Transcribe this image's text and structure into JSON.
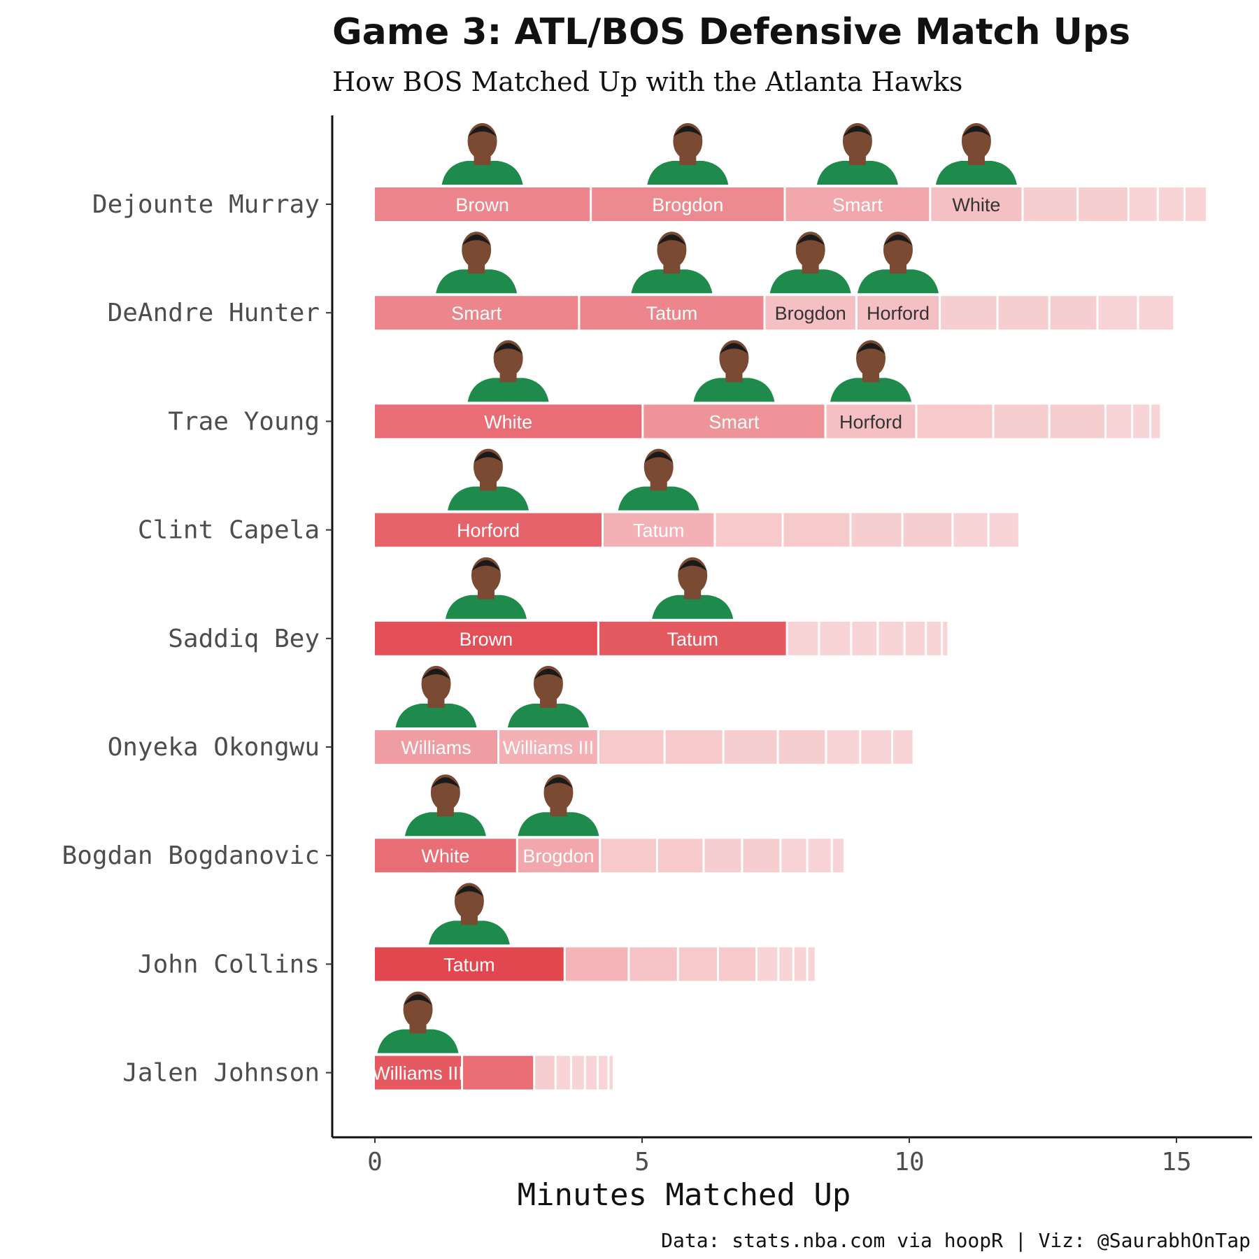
{
  "chart_data": {
    "type": "bar",
    "title": "Game 3: ATL/BOS Defensive Match Ups",
    "subtitle": "How BOS Matched Up with the Atlanta Hawks",
    "xlabel": "Minutes Matched Up",
    "ylabel": "",
    "xlim": [
      0,
      16.6
    ],
    "x_ticks": [
      "0",
      "5",
      "10",
      "15"
    ],
    "caption": "Data: stats.nba.com via hoopR | Viz: @SaurabhOnTap",
    "colors": {
      "bar": "#e03c45",
      "head_skin": "#7a4a32",
      "hair": "#1a1a1a",
      "jersey": "#1e8a4c"
    },
    "categories": [
      "Dejounte Murray",
      "DeAndre Hunter",
      "Trae Young",
      "Clint Capela",
      "Saddiq Bey",
      "Onyeka Okongwu",
      "Bogdan Bogdanovic",
      "John Collins",
      "Jalen Johnson"
    ],
    "rows": [
      {
        "player": "Dejounte Murray",
        "segments": [
          {
            "defender": "Brown",
            "minutes": 4.06,
            "alpha": 0.62
          },
          {
            "defender": "Brogdon",
            "minutes": 3.63,
            "alpha": 0.6
          },
          {
            "defender": "Smart",
            "minutes": 2.72,
            "alpha": 0.45
          },
          {
            "defender": "White",
            "minutes": 1.73,
            "alpha": 0.32
          },
          {
            "defender": "",
            "minutes": 1.03,
            "alpha": 0.25
          },
          {
            "defender": "",
            "minutes": 0.95,
            "alpha": 0.25
          },
          {
            "defender": "",
            "minutes": 0.55,
            "alpha": 0.22
          },
          {
            "defender": "",
            "minutes": 0.5,
            "alpha": 0.22
          },
          {
            "defender": "",
            "minutes": 0.42,
            "alpha": 0.22
          }
        ]
      },
      {
        "player": "DeAndre Hunter",
        "segments": [
          {
            "defender": "Smart",
            "minutes": 3.84,
            "alpha": 0.62
          },
          {
            "defender": "Tatum",
            "minutes": 3.47,
            "alpha": 0.62
          },
          {
            "defender": "Brogdon",
            "minutes": 1.72,
            "alpha": 0.32
          },
          {
            "defender": "Horford",
            "minutes": 1.56,
            "alpha": 0.32
          },
          {
            "defender": "",
            "minutes": 1.08,
            "alpha": 0.25
          },
          {
            "defender": "",
            "minutes": 0.97,
            "alpha": 0.25
          },
          {
            "defender": "",
            "minutes": 0.9,
            "alpha": 0.25
          },
          {
            "defender": "",
            "minutes": 0.76,
            "alpha": 0.22
          },
          {
            "defender": "",
            "minutes": 0.68,
            "alpha": 0.22
          }
        ]
      },
      {
        "player": "Trae Young",
        "segments": [
          {
            "defender": "White",
            "minutes": 5.03,
            "alpha": 0.75
          },
          {
            "defender": "Smart",
            "minutes": 3.42,
            "alpha": 0.55
          },
          {
            "defender": "Horford",
            "minutes": 1.7,
            "alpha": 0.32
          },
          {
            "defender": "",
            "minutes": 1.44,
            "alpha": 0.28
          },
          {
            "defender": "",
            "minutes": 1.05,
            "alpha": 0.25
          },
          {
            "defender": "",
            "minutes": 1.05,
            "alpha": 0.25
          },
          {
            "defender": "",
            "minutes": 0.5,
            "alpha": 0.22
          },
          {
            "defender": "",
            "minutes": 0.34,
            "alpha": 0.22
          },
          {
            "defender": "",
            "minutes": 0.2,
            "alpha": 0.22
          }
        ]
      },
      {
        "player": "Clint Capela",
        "segments": [
          {
            "defender": "Horford",
            "minutes": 4.28,
            "alpha": 0.8
          },
          {
            "defender": "Tatum",
            "minutes": 2.1,
            "alpha": 0.4
          },
          {
            "defender": "",
            "minutes": 1.27,
            "alpha": 0.28
          },
          {
            "defender": "",
            "minutes": 1.27,
            "alpha": 0.28
          },
          {
            "defender": "",
            "minutes": 0.97,
            "alpha": 0.25
          },
          {
            "defender": "",
            "minutes": 0.94,
            "alpha": 0.25
          },
          {
            "defender": "",
            "minutes": 0.67,
            "alpha": 0.22
          },
          {
            "defender": "",
            "minutes": 0.58,
            "alpha": 0.22
          }
        ]
      },
      {
        "player": "Saddiq Bey",
        "segments": [
          {
            "defender": "Brown",
            "minutes": 4.2,
            "alpha": 0.9
          },
          {
            "defender": "Tatum",
            "minutes": 3.53,
            "alpha": 0.85
          },
          {
            "defender": "",
            "minutes": 0.6,
            "alpha": 0.22
          },
          {
            "defender": "",
            "minutes": 0.6,
            "alpha": 0.22
          },
          {
            "defender": "",
            "minutes": 0.5,
            "alpha": 0.22
          },
          {
            "defender": "",
            "minutes": 0.5,
            "alpha": 0.22
          },
          {
            "defender": "",
            "minutes": 0.4,
            "alpha": 0.22
          },
          {
            "defender": "",
            "minutes": 0.3,
            "alpha": 0.22
          },
          {
            "defender": "",
            "minutes": 0.12,
            "alpha": 0.22
          }
        ]
      },
      {
        "player": "Onyeka Okongwu",
        "segments": [
          {
            "defender": "Williams",
            "minutes": 2.33,
            "alpha": 0.5
          },
          {
            "defender": "Williams III",
            "minutes": 1.87,
            "alpha": 0.4
          },
          {
            "defender": "",
            "minutes": 1.24,
            "alpha": 0.28
          },
          {
            "defender": "",
            "minutes": 1.1,
            "alpha": 0.28
          },
          {
            "defender": "",
            "minutes": 1.02,
            "alpha": 0.25
          },
          {
            "defender": "",
            "minutes": 0.9,
            "alpha": 0.25
          },
          {
            "defender": "",
            "minutes": 0.64,
            "alpha": 0.22
          },
          {
            "defender": "",
            "minutes": 0.6,
            "alpha": 0.22
          },
          {
            "defender": "",
            "minutes": 0.4,
            "alpha": 0.22
          }
        ]
      },
      {
        "player": "Bogdan Bogdanovic",
        "segments": [
          {
            "defender": "White",
            "minutes": 2.68,
            "alpha": 0.75
          },
          {
            "defender": "Brogdon",
            "minutes": 1.55,
            "alpha": 0.45
          },
          {
            "defender": "",
            "minutes": 1.07,
            "alpha": 0.28
          },
          {
            "defender": "",
            "minutes": 0.87,
            "alpha": 0.28
          },
          {
            "defender": "",
            "minutes": 0.72,
            "alpha": 0.25
          },
          {
            "defender": "",
            "minutes": 0.72,
            "alpha": 0.25
          },
          {
            "defender": "",
            "minutes": 0.5,
            "alpha": 0.22
          },
          {
            "defender": "",
            "minutes": 0.46,
            "alpha": 0.22
          },
          {
            "defender": "",
            "minutes": 0.24,
            "alpha": 0.22
          }
        ]
      },
      {
        "player": "John Collins",
        "segments": [
          {
            "defender": "Tatum",
            "minutes": 3.57,
            "alpha": 0.95
          },
          {
            "defender": "",
            "minutes": 1.2,
            "alpha": 0.38
          },
          {
            "defender": "",
            "minutes": 0.92,
            "alpha": 0.3
          },
          {
            "defender": "",
            "minutes": 0.75,
            "alpha": 0.28
          },
          {
            "defender": "",
            "minutes": 0.72,
            "alpha": 0.28
          },
          {
            "defender": "",
            "minutes": 0.41,
            "alpha": 0.22
          },
          {
            "defender": "",
            "minutes": 0.28,
            "alpha": 0.22
          },
          {
            "defender": "",
            "minutes": 0.26,
            "alpha": 0.22
          },
          {
            "defender": "",
            "minutes": 0.16,
            "alpha": 0.22
          }
        ]
      },
      {
        "player": "Jalen Johnson",
        "segments": [
          {
            "defender": "Williams III",
            "minutes": 1.65,
            "alpha": 0.85
          },
          {
            "defender": "",
            "minutes": 1.35,
            "alpha": 0.75
          },
          {
            "defender": "",
            "minutes": 0.4,
            "alpha": 0.25
          },
          {
            "defender": "",
            "minutes": 0.29,
            "alpha": 0.22
          },
          {
            "defender": "",
            "minutes": 0.26,
            "alpha": 0.22
          },
          {
            "defender": "",
            "minutes": 0.24,
            "alpha": 0.22
          },
          {
            "defender": "",
            "minutes": 0.2,
            "alpha": 0.22
          },
          {
            "defender": "",
            "minutes": 0.1,
            "alpha": 0.22
          }
        ]
      }
    ]
  }
}
